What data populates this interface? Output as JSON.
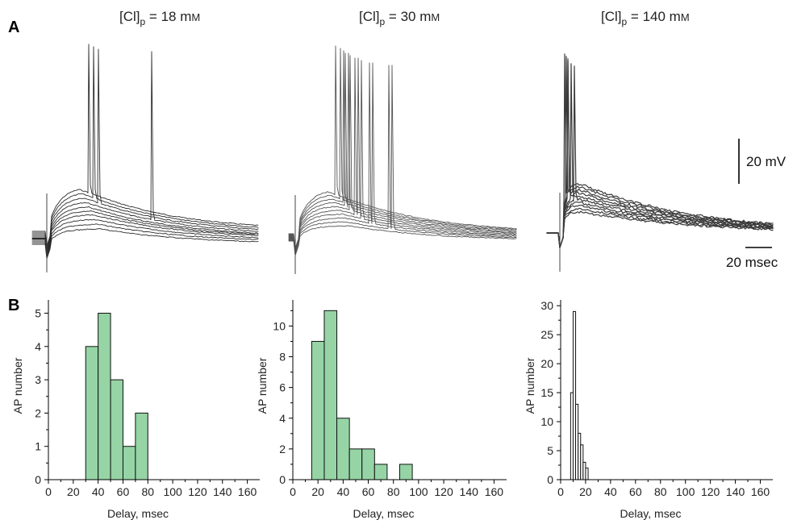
{
  "figure": {
    "panel_a_label": "A",
    "panel_b_label": "B",
    "conditions": [
      {
        "sub": "p",
        "concentration": "18",
        "unit": "mM"
      },
      {
        "sub": "p",
        "concentration": "30",
        "unit": "mM"
      },
      {
        "sub": "p",
        "concentration": "140",
        "unit": "mM"
      }
    ],
    "scalebar": {
      "voltage": "20 mV",
      "time": "20 msec"
    }
  },
  "chart_data": [
    {
      "type": "bar",
      "panel": "B",
      "condition": "[Cl]p = 18 mM",
      "xlabel": "Delay, msec",
      "ylabel": "AP number",
      "xlim": [
        0,
        170
      ],
      "ylim": [
        0,
        5.4
      ],
      "xticks": [
        0,
        20,
        40,
        60,
        80,
        100,
        120,
        140,
        160
      ],
      "yticks": [
        0,
        1,
        2,
        3,
        4,
        5
      ],
      "bin_width": 10,
      "bins": [
        {
          "x0": 30,
          "x1": 40,
          "count": 4
        },
        {
          "x0": 40,
          "x1": 50,
          "count": 5
        },
        {
          "x0": 50,
          "x1": 60,
          "count": 3
        },
        {
          "x0": 60,
          "x1": 70,
          "count": 1
        },
        {
          "x0": 70,
          "x1": 80,
          "count": 2
        }
      ],
      "bar_color": "#96d4a6"
    },
    {
      "type": "bar",
      "panel": "B",
      "condition": "[Cl]p = 30 mM",
      "xlabel": "Delay, msec",
      "ylabel": "AP number",
      "xlim": [
        0,
        170
      ],
      "ylim": [
        0,
        11.7
      ],
      "xticks": [
        0,
        20,
        40,
        60,
        80,
        100,
        120,
        140,
        160
      ],
      "yticks": [
        0,
        2,
        4,
        6,
        8,
        10
      ],
      "bin_width": 10,
      "bins": [
        {
          "x0": 15,
          "x1": 25,
          "count": 9
        },
        {
          "x0": 25,
          "x1": 35,
          "count": 11
        },
        {
          "x0": 35,
          "x1": 45,
          "count": 4
        },
        {
          "x0": 45,
          "x1": 55,
          "count": 2
        },
        {
          "x0": 55,
          "x1": 65,
          "count": 2
        },
        {
          "x0": 65,
          "x1": 75,
          "count": 1
        },
        {
          "x0": 85,
          "x1": 95,
          "count": 1
        }
      ],
      "bar_color": "#96d4a6"
    },
    {
      "type": "bar",
      "panel": "B",
      "condition": "[Cl]p = 140 mM",
      "xlabel": "Delay, msec",
      "ylabel": "AP number",
      "xlim": [
        0,
        170
      ],
      "ylim": [
        0,
        31
      ],
      "xticks": [
        0,
        20,
        40,
        60,
        80,
        100,
        120,
        140,
        160
      ],
      "yticks": [
        0,
        5,
        10,
        15,
        20,
        25,
        30
      ],
      "bin_width": 2,
      "bins": [
        {
          "x0": 8,
          "x1": 10,
          "count": 15
        },
        {
          "x0": 10,
          "x1": 12,
          "count": 29
        },
        {
          "x0": 12,
          "x1": 14,
          "count": 13
        },
        {
          "x0": 14,
          "x1": 16,
          "count": 8
        },
        {
          "x0": 16,
          "x1": 18,
          "count": 6
        },
        {
          "x0": 18,
          "x1": 20,
          "count": 3
        },
        {
          "x0": 20,
          "x1": 22,
          "count": 2
        }
      ],
      "bar_color": "#ffffff"
    }
  ],
  "traces": [
    {
      "condition": "[Cl]p = 18 mM",
      "stroke": "#2a2a2a",
      "baselines": [
        -6,
        -2,
        2,
        6,
        10,
        12,
        14,
        18,
        22,
        26
      ],
      "spike_delays": [
        47,
        51,
        55,
        99
      ]
    },
    {
      "condition": "[Cl]p = 30 mM",
      "stroke": "#555555",
      "baselines": [
        -4,
        -2,
        0,
        2,
        4,
        6,
        8,
        10,
        12,
        14
      ],
      "spike_delays": [
        39,
        43,
        46,
        48,
        51,
        56,
        61,
        68,
        84
      ]
    },
    {
      "condition": "[Cl]p = 140 mM",
      "stroke": "#3a3a3a",
      "baselines": [
        0,
        0,
        0,
        0,
        0,
        0,
        0,
        0,
        0,
        0
      ],
      "spike_delays": [
        15,
        16,
        17,
        18,
        20,
        22
      ]
    }
  ]
}
